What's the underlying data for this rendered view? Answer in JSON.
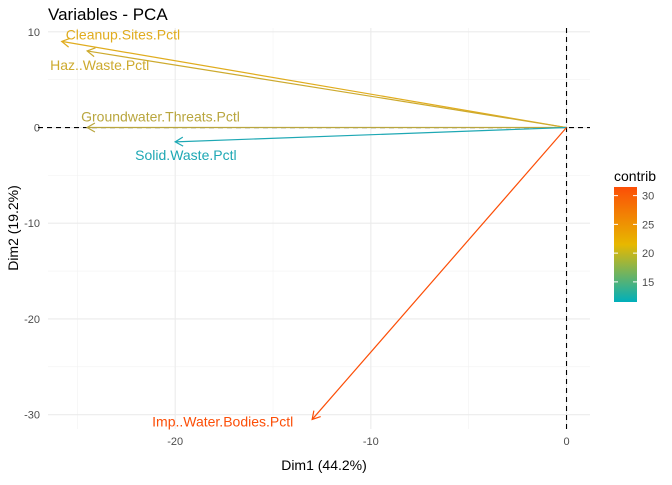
{
  "chart_data": {
    "type": "scatter",
    "subtype": "pca-variable-arrows",
    "title": "Variables - PCA",
    "xlabel": "Dim1 (44.2%)",
    "ylabel": "Dim2 (19.2%)",
    "xlim": [
      -26.5,
      1.2
    ],
    "ylim": [
      -31.5,
      10.4
    ],
    "x_ticks": [
      -20,
      -10,
      0
    ],
    "y_ticks": [
      10,
      0,
      -10,
      -20,
      -30
    ],
    "x_tick_labels": [
      "-20",
      "-10",
      "0"
    ],
    "y_tick_labels": [
      "10",
      "0",
      "-10",
      "-20",
      "-30"
    ],
    "grid": true,
    "zero_lines": "dashed",
    "variables": [
      {
        "name": "Cleanup.Sites.Pctl",
        "x": -25.8,
        "y": 9.0,
        "contrib": 21.5,
        "color": "#E0AC1E"
      },
      {
        "name": "Haz..Waste.Pctl",
        "x": -24.5,
        "y": 8.0,
        "contrib": 20.5,
        "color": "#CDAA2E"
      },
      {
        "name": "Groundwater.Threats.Pctl",
        "x": -24.5,
        "y": 0.0,
        "contrib": 18.5,
        "color": "#B9A63E"
      },
      {
        "name": "Solid.Waste.Pctl",
        "x": -20.0,
        "y": -1.5,
        "contrib": 12.0,
        "color": "#1EA8B4"
      },
      {
        "name": "Imp..Water.Bodies.Pctl",
        "x": -13.0,
        "y": -30.5,
        "contrib": 31.0,
        "color": "#FC4E07"
      }
    ],
    "legend": {
      "title": "contrib",
      "position": "right",
      "ticks": [
        30,
        25,
        20,
        15
      ],
      "tick_labels": [
        "30",
        "25",
        "20",
        "15"
      ],
      "range": [
        11.5,
        31.5
      ],
      "colors": [
        "#00AFBB",
        "#E7B800",
        "#FC4E07"
      ]
    }
  }
}
